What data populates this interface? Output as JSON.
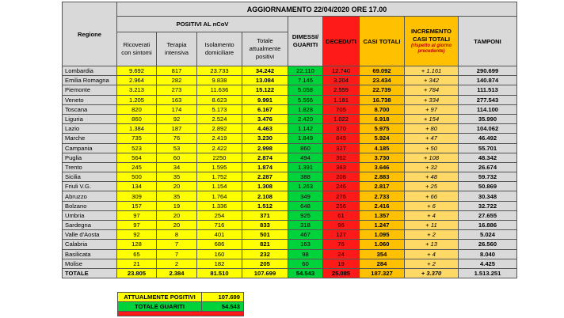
{
  "table": {
    "title": "AGGIORNAMENTO 22/04/2020 ORE 17.00",
    "region_header": "Regione",
    "group_header": "POSITIVI AL nCoV",
    "sub_headers": [
      "Ricoverati con sintomi",
      "Terapia intensiva",
      "Isolamento domiciliare",
      "Totale attualmente positivi"
    ],
    "other_headers": [
      "DIMESSI/ GUARITI",
      "DECEDUTI",
      "CASI TOTALI"
    ],
    "increment_header": "INCREMENTO CASI TOTALI",
    "increment_note": "(rispetto al giorno precedente)",
    "tamponi_header": "TAMPONI",
    "rows": [
      [
        "Lombardia",
        "9.692",
        "817",
        "23.733",
        "34.242",
        "22.110",
        "12.740",
        "69.092",
        "+ 1.161",
        "290.699"
      ],
      [
        "Emilia Romagna",
        "2.964",
        "282",
        "9.838",
        "13.084",
        "7.146",
        "3.204",
        "23.434",
        "+ 342",
        "140.874"
      ],
      [
        "Piemonte",
        "3.213",
        "273",
        "11.636",
        "15.122",
        "5.058",
        "2.559",
        "22.739",
        "+ 784",
        "111.513"
      ],
      [
        "Veneto",
        "1.205",
        "163",
        "8.623",
        "9.991",
        "5.566",
        "1.181",
        "16.738",
        "+ 334",
        "277.543"
      ],
      [
        "Toscana",
        "820",
        "174",
        "5.173",
        "6.167",
        "1.828",
        "705",
        "8.700",
        "+ 97",
        "114.100"
      ],
      [
        "Liguria",
        "860",
        "92",
        "2.524",
        "3.476",
        "2.420",
        "1.022",
        "6.918",
        "+ 154",
        "35.990"
      ],
      [
        "Lazio",
        "1.384",
        "187",
        "2.892",
        "4.463",
        "1.142",
        "370",
        "5.975",
        "+ 80",
        "104.062"
      ],
      [
        "Marche",
        "735",
        "76",
        "2.419",
        "3.230",
        "1.849",
        "845",
        "5.924",
        "+ 47",
        "46.492"
      ],
      [
        "Campania",
        "523",
        "53",
        "2.422",
        "2.998",
        "860",
        "327",
        "4.185",
        "+ 50",
        "55.701"
      ],
      [
        "Puglia",
        "564",
        "60",
        "2250",
        "2.874",
        "494",
        "362",
        "3.730",
        "+ 108",
        "48.342"
      ],
      [
        "Trento",
        "245",
        "34",
        "1.595",
        "1.874",
        "1.391",
        "383",
        "3.646",
        "+ 32",
        "26.674"
      ],
      [
        "Sicilia",
        "500",
        "35",
        "1.752",
        "2.287",
        "388",
        "208",
        "2.883",
        "+ 48",
        "59.732"
      ],
      [
        "Friuli V.G.",
        "134",
        "20",
        "1.154",
        "1.308",
        "1.263",
        "246",
        "2.817",
        "+ 25",
        "50.869"
      ],
      [
        "Abruzzo",
        "309",
        "35",
        "1.764",
        "2.108",
        "349",
        "276",
        "2.733",
        "+ 66",
        "30.348"
      ],
      [
        "Bolzano",
        "157",
        "19",
        "1.336",
        "1.512",
        "648",
        "256",
        "2.416",
        "+ 6",
        "32.722"
      ],
      [
        "Umbria",
        "97",
        "20",
        "254",
        "371",
        "925",
        "61",
        "1.357",
        "+ 4",
        "27.655"
      ],
      [
        "Sardegna",
        "97",
        "20",
        "716",
        "833",
        "318",
        "96",
        "1.247",
        "+ 11",
        "16.886"
      ],
      [
        "Valle d'Aosta",
        "92",
        "8",
        "401",
        "501",
        "467",
        "127",
        "1.095",
        "+ 2",
        "5.024"
      ],
      [
        "Calabria",
        "128",
        "7",
        "686",
        "821",
        "163",
        "76",
        "1.060",
        "+ 13",
        "26.560"
      ],
      [
        "Basilicata",
        "65",
        "7",
        "160",
        "232",
        "98",
        "24",
        "354",
        "+ 4",
        "8.040"
      ],
      [
        "Molise",
        "21",
        "2",
        "182",
        "205",
        "60",
        "19",
        "284",
        "+ 2",
        "4.425"
      ]
    ],
    "total": [
      "TOTALE",
      "23.805",
      "2.384",
      "81.510",
      "107.699",
      "54.543",
      "25.085",
      "187.327",
      "+ 3.370",
      "1.513.251"
    ]
  },
  "summary": [
    {
      "label": "ATTUALMENTE POSITIVI",
      "value": "107.699"
    },
    {
      "label": "TOTALE GUARITI",
      "value": "54.543"
    }
  ]
}
